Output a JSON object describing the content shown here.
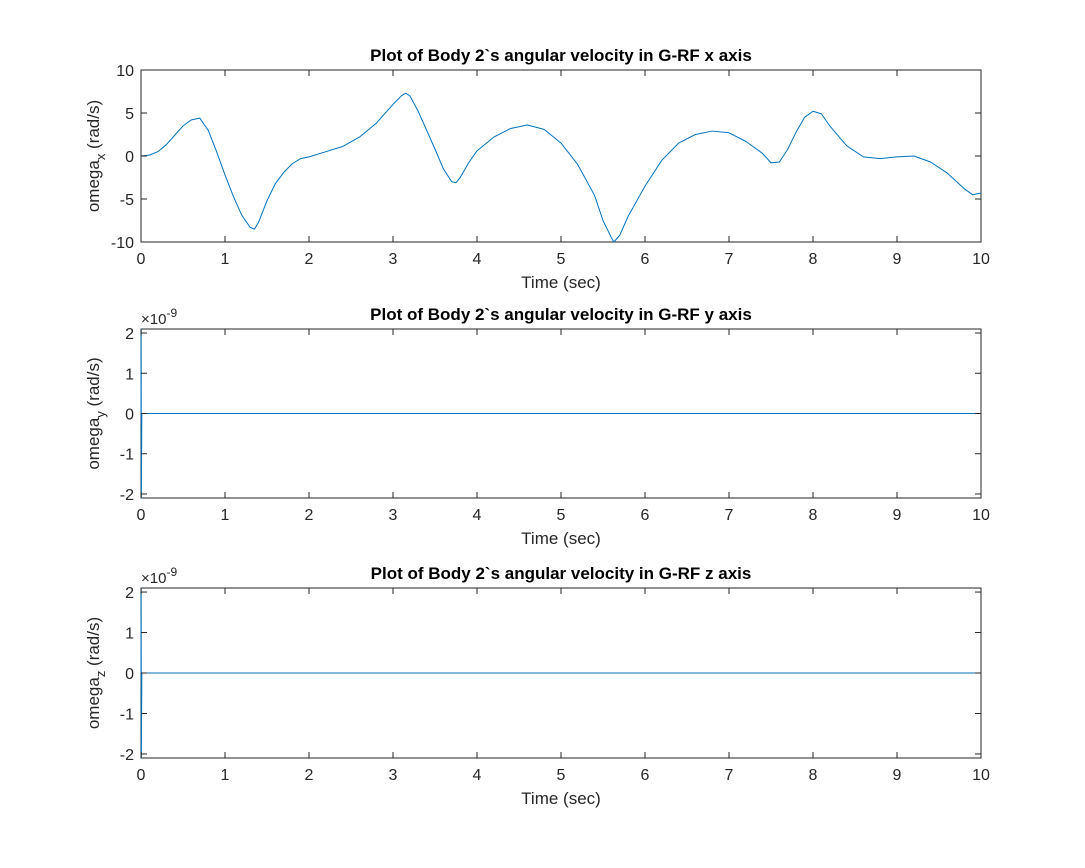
{
  "figure": {
    "background": "#ffffff",
    "line_color": "#0072bd"
  },
  "chart_data": [
    {
      "type": "line",
      "title": "Plot of Body 2`s angular velocity in G-RF x axis",
      "xlabel": "Time (sec)",
      "ylabel_main": "omega",
      "ylabel_sub": "x",
      "ylabel_unit": " (rad/s)",
      "exponent_label": "",
      "xlim": [
        0,
        10
      ],
      "ylim": [
        -10,
        10
      ],
      "xticks": [
        0,
        1,
        2,
        3,
        4,
        5,
        6,
        7,
        8,
        9,
        10
      ],
      "yticks": [
        -10,
        -5,
        0,
        5,
        10
      ],
      "xtick_labels": [
        "0",
        "1",
        "2",
        "3",
        "4",
        "5",
        "6",
        "7",
        "8",
        "9",
        "10"
      ],
      "ytick_labels": [
        "-10",
        "-5",
        "0",
        "5",
        "10"
      ],
      "grid": false,
      "series": [
        {
          "x": [
            0,
            0.1,
            0.2,
            0.3,
            0.4,
            0.5,
            0.6,
            0.7,
            0.8,
            0.9,
            1.0,
            1.1,
            1.2,
            1.3,
            1.35,
            1.4,
            1.5,
            1.6,
            1.7,
            1.8,
            1.9,
            2.0,
            2.2,
            2.4,
            2.6,
            2.8,
            3.0,
            3.1,
            3.15,
            3.2,
            3.3,
            3.4,
            3.5,
            3.6,
            3.7,
            3.75,
            3.8,
            3.9,
            4.0,
            4.2,
            4.4,
            4.6,
            4.8,
            5.0,
            5.2,
            5.4,
            5.5,
            5.6,
            5.63,
            5.7,
            5.8,
            6.0,
            6.2,
            6.4,
            6.6,
            6.8,
            7.0,
            7.2,
            7.4,
            7.5,
            7.6,
            7.7,
            7.8,
            7.9,
            8.0,
            8.1,
            8.2,
            8.4,
            8.6,
            8.8,
            9.0,
            9.2,
            9.4,
            9.6,
            9.8,
            9.9,
            10.0
          ],
          "y": [
            0,
            0.1,
            0.5,
            1.3,
            2.4,
            3.5,
            4.2,
            4.4,
            3.0,
            0.5,
            -2.2,
            -4.7,
            -6.9,
            -8.3,
            -8.5,
            -7.7,
            -5.2,
            -3.2,
            -1.9,
            -0.9,
            -0.3,
            -0.1,
            0.5,
            1.1,
            2.2,
            3.8,
            6.0,
            7.0,
            7.3,
            7.0,
            5.2,
            3.0,
            0.8,
            -1.5,
            -3.0,
            -3.1,
            -2.5,
            -0.8,
            0.6,
            2.2,
            3.2,
            3.6,
            3.1,
            1.5,
            -1.0,
            -4.6,
            -7.5,
            -9.5,
            -10.0,
            -9.2,
            -7.0,
            -3.5,
            -0.5,
            1.5,
            2.5,
            2.9,
            2.7,
            1.7,
            0.3,
            -0.8,
            -0.7,
            0.8,
            2.8,
            4.5,
            5.2,
            4.9,
            3.5,
            1.2,
            -0.1,
            -0.3,
            -0.1,
            0.0,
            -0.7,
            -2.0,
            -3.8,
            -4.5,
            -4.3
          ]
        }
      ]
    },
    {
      "type": "line",
      "title": "Plot of Body 2`s angular velocity in G-RF y axis",
      "xlabel": "Time (sec)",
      "ylabel_main": "omega",
      "ylabel_sub": "y",
      "ylabel_unit": " (rad/s)",
      "exponent_label": "×10",
      "exponent_power": "-9",
      "xlim": [
        0,
        10
      ],
      "ylim": [
        -2.1,
        2.1
      ],
      "xticks": [
        0,
        1,
        2,
        3,
        4,
        5,
        6,
        7,
        8,
        9,
        10
      ],
      "yticks": [
        -2,
        -1,
        0,
        1,
        2
      ],
      "xtick_labels": [
        "0",
        "1",
        "2",
        "3",
        "4",
        "5",
        "6",
        "7",
        "8",
        "9",
        "10"
      ],
      "ytick_labels": [
        "-2",
        "-1",
        "0",
        "1",
        "2"
      ],
      "grid": false,
      "series": [
        {
          "x": [
            0,
            0.002,
            0.004,
            0.01,
            10
          ],
          "y": [
            0,
            2.1,
            -2.1,
            0,
            0
          ]
        }
      ]
    },
    {
      "type": "line",
      "title": "Plot of Body 2`s angular velocity in G-RF z axis",
      "xlabel": "Time (sec)",
      "ylabel_main": "omega",
      "ylabel_sub": "z",
      "ylabel_unit": " (rad/s)",
      "exponent_label": "×10",
      "exponent_power": "-9",
      "xlim": [
        0,
        10
      ],
      "ylim": [
        -2.1,
        2.1
      ],
      "xticks": [
        0,
        1,
        2,
        3,
        4,
        5,
        6,
        7,
        8,
        9,
        10
      ],
      "yticks": [
        -2,
        -1,
        0,
        1,
        2
      ],
      "xtick_labels": [
        "0",
        "1",
        "2",
        "3",
        "4",
        "5",
        "6",
        "7",
        "8",
        "9",
        "10"
      ],
      "ytick_labels": [
        "-2",
        "-1",
        "0",
        "1",
        "2"
      ],
      "grid": false,
      "series": [
        {
          "x": [
            0,
            0.002,
            0.004,
            0.01,
            10
          ],
          "y": [
            0,
            2.1,
            -2.1,
            0,
            0
          ]
        }
      ]
    }
  ]
}
